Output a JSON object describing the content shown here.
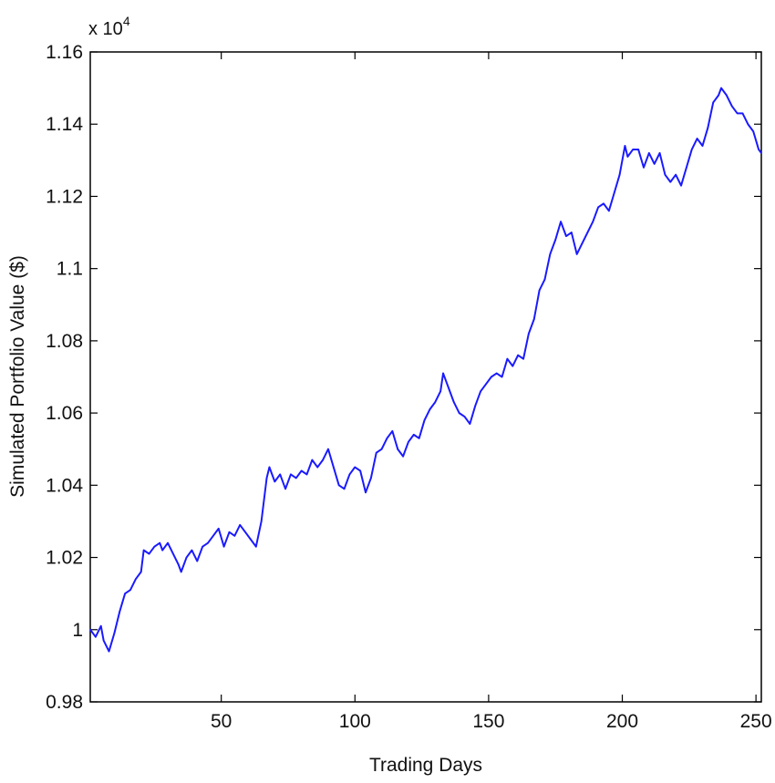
{
  "chart_data": {
    "type": "line",
    "title": "",
    "xlabel": "Trading Days",
    "ylabel": "Simulated Portfolio Value ($)",
    "y_exponent_label": "x 10",
    "y_exponent_power": "4",
    "xlim": [
      1,
      252
    ],
    "ylim": [
      0.98,
      1.16
    ],
    "x_ticks": [
      50,
      100,
      150,
      200,
      250
    ],
    "x_tick_labels": [
      "50",
      "100",
      "150",
      "200",
      "250"
    ],
    "y_ticks": [
      0.98,
      1.0,
      1.02,
      1.04,
      1.06,
      1.08,
      1.1,
      1.12,
      1.14,
      1.16
    ],
    "y_tick_labels": [
      "0.98",
      "1",
      "1.02",
      "1.04",
      "1.06",
      "1.08",
      "1.1",
      "1.12",
      "1.14",
      "1.16"
    ],
    "grid": false,
    "line_color": "#1a1aff",
    "series": [
      {
        "name": "",
        "points": [
          [
            1,
            1.0
          ],
          [
            3,
            0.998
          ],
          [
            5,
            1.001
          ],
          [
            6,
            0.997
          ],
          [
            8,
            0.994
          ],
          [
            10,
            0.999
          ],
          [
            12,
            1.005
          ],
          [
            14,
            1.01
          ],
          [
            16,
            1.011
          ],
          [
            18,
            1.014
          ],
          [
            20,
            1.016
          ],
          [
            21,
            1.022
          ],
          [
            23,
            1.021
          ],
          [
            25,
            1.023
          ],
          [
            27,
            1.024
          ],
          [
            28,
            1.022
          ],
          [
            30,
            1.024
          ],
          [
            32,
            1.021
          ],
          [
            34,
            1.018
          ],
          [
            35,
            1.016
          ],
          [
            37,
            1.02
          ],
          [
            39,
            1.022
          ],
          [
            41,
            1.019
          ],
          [
            43,
            1.023
          ],
          [
            45,
            1.024
          ],
          [
            47,
            1.026
          ],
          [
            49,
            1.028
          ],
          [
            51,
            1.023
          ],
          [
            53,
            1.027
          ],
          [
            55,
            1.026
          ],
          [
            57,
            1.029
          ],
          [
            59,
            1.027
          ],
          [
            61,
            1.025
          ],
          [
            63,
            1.023
          ],
          [
            65,
            1.03
          ],
          [
            67,
            1.042
          ],
          [
            68,
            1.045
          ],
          [
            70,
            1.041
          ],
          [
            72,
            1.043
          ],
          [
            74,
            1.039
          ],
          [
            76,
            1.043
          ],
          [
            78,
            1.042
          ],
          [
            80,
            1.044
          ],
          [
            82,
            1.043
          ],
          [
            84,
            1.047
          ],
          [
            86,
            1.045
          ],
          [
            88,
            1.047
          ],
          [
            90,
            1.05
          ],
          [
            92,
            1.045
          ],
          [
            94,
            1.04
          ],
          [
            96,
            1.039
          ],
          [
            98,
            1.043
          ],
          [
            100,
            1.045
          ],
          [
            102,
            1.044
          ],
          [
            104,
            1.038
          ],
          [
            106,
            1.042
          ],
          [
            108,
            1.049
          ],
          [
            110,
            1.05
          ],
          [
            112,
            1.053
          ],
          [
            114,
            1.055
          ],
          [
            116,
            1.05
          ],
          [
            118,
            1.048
          ],
          [
            120,
            1.052
          ],
          [
            122,
            1.054
          ],
          [
            124,
            1.053
          ],
          [
            126,
            1.058
          ],
          [
            128,
            1.061
          ],
          [
            130,
            1.063
          ],
          [
            132,
            1.066
          ],
          [
            133,
            1.071
          ],
          [
            135,
            1.067
          ],
          [
            137,
            1.063
          ],
          [
            139,
            1.06
          ],
          [
            141,
            1.059
          ],
          [
            143,
            1.057
          ],
          [
            145,
            1.062
          ],
          [
            147,
            1.066
          ],
          [
            149,
            1.068
          ],
          [
            151,
            1.07
          ],
          [
            153,
            1.071
          ],
          [
            155,
            1.07
          ],
          [
            157,
            1.075
          ],
          [
            159,
            1.073
          ],
          [
            161,
            1.076
          ],
          [
            163,
            1.075
          ],
          [
            165,
            1.082
          ],
          [
            167,
            1.086
          ],
          [
            169,
            1.094
          ],
          [
            171,
            1.097
          ],
          [
            173,
            1.104
          ],
          [
            175,
            1.108
          ],
          [
            177,
            1.113
          ],
          [
            179,
            1.109
          ],
          [
            181,
            1.11
          ],
          [
            183,
            1.104
          ],
          [
            185,
            1.107
          ],
          [
            187,
            1.11
          ],
          [
            189,
            1.113
          ],
          [
            191,
            1.117
          ],
          [
            193,
            1.118
          ],
          [
            195,
            1.116
          ],
          [
            197,
            1.121
          ],
          [
            199,
            1.126
          ],
          [
            201,
            1.134
          ],
          [
            202,
            1.131
          ],
          [
            204,
            1.133
          ],
          [
            206,
            1.133
          ],
          [
            208,
            1.128
          ],
          [
            210,
            1.132
          ],
          [
            212,
            1.129
          ],
          [
            214,
            1.132
          ],
          [
            216,
            1.126
          ],
          [
            218,
            1.124
          ],
          [
            220,
            1.126
          ],
          [
            222,
            1.123
          ],
          [
            224,
            1.128
          ],
          [
            226,
            1.133
          ],
          [
            228,
            1.136
          ],
          [
            230,
            1.134
          ],
          [
            232,
            1.139
          ],
          [
            234,
            1.146
          ],
          [
            236,
            1.148
          ],
          [
            237,
            1.15
          ],
          [
            239,
            1.148
          ],
          [
            241,
            1.145
          ],
          [
            243,
            1.143
          ],
          [
            245,
            1.143
          ],
          [
            247,
            1.14
          ],
          [
            249,
            1.138
          ],
          [
            251,
            1.133
          ],
          [
            252,
            1.132
          ]
        ]
      }
    ]
  }
}
